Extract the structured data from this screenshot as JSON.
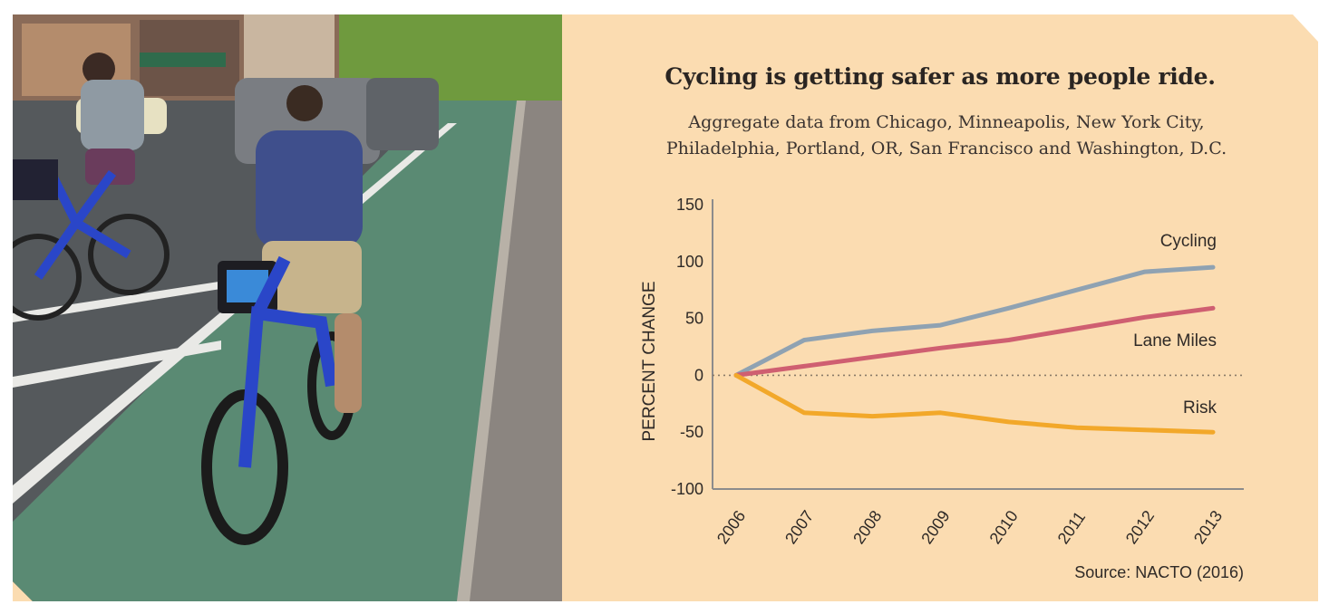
{
  "chart_data": {
    "type": "line",
    "title": "Cycling is getting safer as more people ride.",
    "subtitle_lines": [
      "Aggregate data from Chicago, Minneapolis, New York City,",
      "Philadelphia, Portland, OR, San Francisco and Washington, D.C."
    ],
    "ylabel": "PERCENT CHANGE",
    "xlabel": "",
    "categories": [
      "2006",
      "2007",
      "2008",
      "2009",
      "2010",
      "2011",
      "2012",
      "2013"
    ],
    "ylim": [
      -100,
      150
    ],
    "yticks": [
      "150",
      "100",
      "50",
      "0",
      "-50",
      "-100"
    ],
    "ytick_values": [
      150,
      100,
      50,
      0,
      -50,
      -100
    ],
    "zero_line": "dotted",
    "grid": false,
    "series": [
      {
        "name": "Cycling",
        "color": "#8fa2b2",
        "values": [
          0,
          31,
          39,
          44,
          59,
          75,
          91,
          95
        ]
      },
      {
        "name": "Lane Miles",
        "color": "#cf5f71",
        "values": [
          0,
          8,
          16,
          24,
          31,
          41,
          51,
          59
        ]
      },
      {
        "name": "Risk",
        "color": "#f2a82a",
        "values": [
          0,
          -33,
          -36,
          -33,
          -41,
          -46,
          -48,
          -50
        ]
      }
    ],
    "source": "Source: NACTO (2016)"
  },
  "colors": {
    "background": "#fbdcb1",
    "axis": "#8c8c8c",
    "text": "#2f2a27"
  },
  "photo": {
    "icon": "bike-share-riders-photo"
  }
}
